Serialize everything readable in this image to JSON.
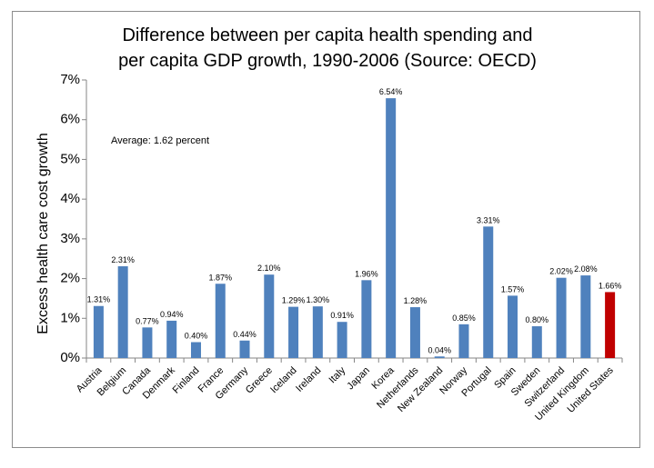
{
  "chart_data": {
    "type": "bar",
    "title_lines": [
      "Difference between per capita health spending and",
      "per capita GDP growth, 1990-2006 (Source: OECD)"
    ],
    "xlabel": "",
    "ylabel": "Excess health care cost growth",
    "ylim": [
      0,
      7
    ],
    "yticks": [
      "0%",
      "1%",
      "2%",
      "3%",
      "4%",
      "5%",
      "6%",
      "7%"
    ],
    "ytick_values": [
      0,
      1,
      2,
      3,
      4,
      5,
      6,
      7
    ],
    "grid": false,
    "annotation": "Average: 1.62 percent",
    "categories": [
      "Austria",
      "Belgium",
      "Canada",
      "Denmark",
      "Finland",
      "France",
      "Germany",
      "Greece",
      "Iceland",
      "Ireland",
      "Italy",
      "Japan",
      "Korea",
      "Netherlands",
      "New Zealand",
      "Norway",
      "Portugal",
      "Spain",
      "Sweden",
      "Switzerland",
      "United Kingdom",
      "United States"
    ],
    "values": [
      1.31,
      2.31,
      0.77,
      0.94,
      0.4,
      1.87,
      0.44,
      2.1,
      1.29,
      1.3,
      0.91,
      1.96,
      6.54,
      1.28,
      0.04,
      0.85,
      3.31,
      1.57,
      0.8,
      2.02,
      2.08,
      1.66
    ],
    "data_labels": [
      "1.31%",
      "2.31%",
      "0.77%",
      "0.94%",
      "0.40%",
      "1.87%",
      "0.44%",
      "2.10%",
      "1.29%",
      "1.30%",
      "0.91%",
      "1.96%",
      "6.54%",
      "1.28%",
      "0.04%",
      "0.85%",
      "3.31%",
      "1.57%",
      "0.80%",
      "2.02%",
      "2.08%",
      "1.66%"
    ],
    "bar_color": "#4f81bd",
    "highlight_index": 21,
    "highlight_color": "#c00000",
    "axis_color": "#868686"
  }
}
